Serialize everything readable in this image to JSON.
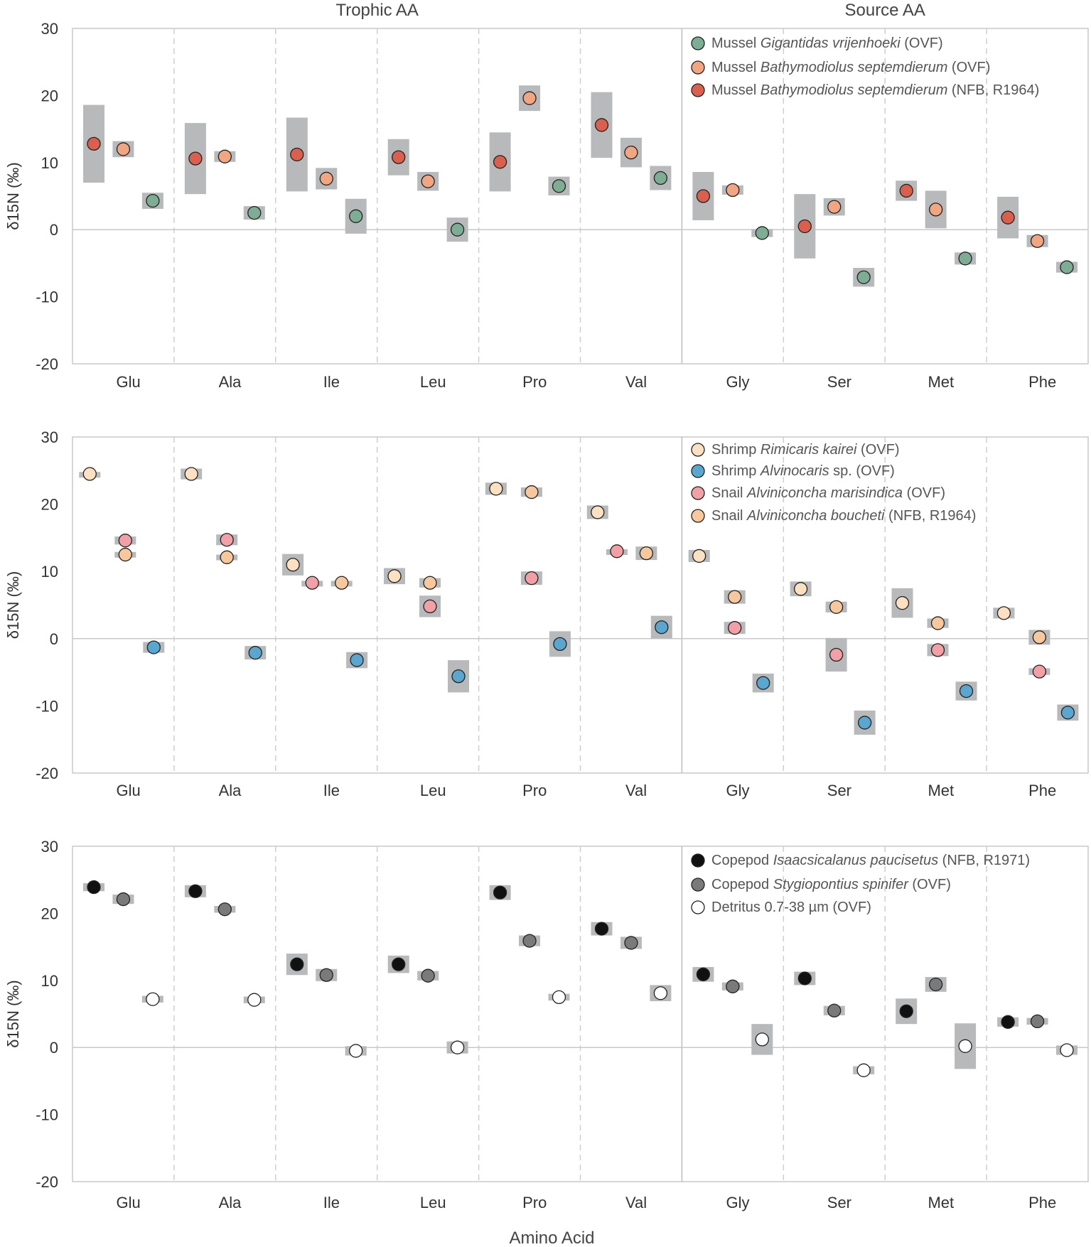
{
  "chart_data": {
    "type": "scatter",
    "group_labels": [
      "Trophic AA",
      "Source AA"
    ],
    "xlabel": "Amino Acid",
    "ylabel": "δ15N (‰)",
    "ylim": [
      -20,
      30
    ],
    "yticks": [
      30,
      20,
      10,
      0,
      -10,
      -20
    ],
    "categories": [
      "Glu",
      "Ala",
      "Ile",
      "Leu",
      "Pro",
      "Val",
      "Gly",
      "Ser",
      "Met",
      "Phe"
    ],
    "trophic_count": 6,
    "error_box_color": "#b8b9bb",
    "panels": [
      {
        "series": [
          {
            "name": "Mussel Bathymodiolus septemdierum (NFB, R1964)",
            "prefix": "Mussel ",
            "italic": "Bathymodiolus septemdierum",
            "suffix": " (NFB, R1964)",
            "color": "#d9604f",
            "slot": 0.21,
            "values": [
              12.8,
              10.6,
              11.2,
              10.8,
              10.1,
              15.6,
              5.0,
              0.5,
              5.8,
              1.8
            ],
            "sd": [
              5.8,
              5.3,
              5.5,
              2.7,
              4.4,
              4.9,
              3.6,
              4.8,
              1.5,
              3.1
            ]
          },
          {
            "name": "Mussel Bathymodiolus septemdierum (OVF)",
            "prefix": "Mussel ",
            "italic": "Bathymodiolus septemdierum",
            "suffix": " (OVF)",
            "color": "#f0a683",
            "slot": 0.5,
            "values": [
              12.0,
              10.9,
              7.6,
              7.2,
              19.6,
              11.5,
              5.9,
              3.4,
              3.0,
              -1.7
            ],
            "sd": [
              1.2,
              0.8,
              1.6,
              1.4,
              1.9,
              2.2,
              0.7,
              1.3,
              2.8,
              0.9
            ]
          },
          {
            "name": "Mussel Gigantidas vrijenhoeki (OVF)",
            "prefix": "Mussel ",
            "italic": "Gigantidas vrijenhoeki",
            "suffix": " (OVF)",
            "color": "#7fac94",
            "slot": 0.79,
            "values": [
              4.3,
              2.5,
              2.0,
              0.0,
              6.5,
              7.7,
              -0.5,
              -7.1,
              -4.3,
              -5.6
            ],
            "sd": [
              1.2,
              1.0,
              2.6,
              1.8,
              1.4,
              1.8,
              0.6,
              1.4,
              0.9,
              0.8
            ]
          }
        ],
        "legend_order": [
          2,
          1,
          0
        ]
      },
      {
        "series": [
          {
            "name": "Shrimp Rimicaris kairei (OVF)",
            "prefix": "Shrimp ",
            "italic": "Rimicaris kairei",
            "suffix": " (OVF)",
            "color": "#fbe0c2",
            "slot": 0.17,
            "values": [
              24.5,
              24.5,
              11.0,
              9.3,
              22.3,
              18.8,
              12.3,
              7.4,
              5.3,
              3.8
            ],
            "sd": [
              0.3,
              0.8,
              1.6,
              1.2,
              0.9,
              1.0,
              0.9,
              1.1,
              2.2,
              0.8
            ]
          },
          {
            "name": "Snail Alviniconcha marisindica (OVF)",
            "prefix": "Snail ",
            "italic": "Alviniconcha marisindica",
            "suffix": " (OVF)",
            "color": "#f0a0a6",
            "slot": 0.52,
            "dodge": -0.16,
            "values": [
              14.6,
              14.7,
              8.3,
              4.8,
              9.0,
              13.0,
              1.6,
              -2.4,
              -1.7,
              -4.9
            ],
            "sd": [
              0.6,
              0.8,
              0.3,
              1.6,
              1.0,
              0.3,
              0.9,
              2.5,
              0.9,
              0.5
            ]
          },
          {
            "name": "Snail Alviniconcha boucheti (NFB, R1964)",
            "prefix": "Snail ",
            "italic": "Alviniconcha boucheti",
            "suffix": " (NFB, R1964)",
            "color": "#f7c79e",
            "slot": 0.52,
            "dodge": 0.13,
            "values": [
              12.5,
              12.1,
              8.3,
              8.3,
              21.8,
              12.7,
              6.2,
              4.7,
              2.3,
              0.2
            ],
            "sd": [
              0.4,
              0.4,
              0.3,
              0.7,
              0.7,
              1.0,
              1.0,
              0.8,
              0.7,
              1.1
            ]
          },
          {
            "name": "Shrimp Alvinocaris sp. (OVF)",
            "prefix": "Shrimp ",
            "italic": "Alvinocaris",
            "suffix": " sp. (OVF)",
            "color": "#5ba6cf",
            "slot": 0.8,
            "values": [
              -1.3,
              -2.1,
              -3.2,
              -5.6,
              -0.8,
              1.7,
              -6.6,
              -12.5,
              -7.8,
              -11.0
            ],
            "sd": [
              0.8,
              1.0,
              1.2,
              2.4,
              1.9,
              1.7,
              1.4,
              1.8,
              1.4,
              1.2
            ]
          }
        ],
        "legend_order": [
          0,
          3,
          1,
          2
        ]
      },
      {
        "series": [
          {
            "name": "Copepod Isaacsicalanus paucisetus (NFB, R1971)",
            "prefix": "Copepod ",
            "italic": "Isaacsicalanus paucisetus",
            "suffix": " (NFB, R1971)",
            "color": "#111111",
            "slot": 0.21,
            "values": [
              23.9,
              23.3,
              12.4,
              12.4,
              23.1,
              17.7,
              10.9,
              10.3,
              5.4,
              3.8
            ],
            "sd": [
              0.6,
              0.9,
              1.6,
              1.3,
              1.1,
              1.0,
              1.1,
              1.0,
              1.9,
              0.7
            ]
          },
          {
            "name": "Copepod Stygiopontius spinifer (OVF)",
            "prefix": "Copepod ",
            "italic": "Stygiopontius spinifer",
            "suffix": " (OVF)",
            "color": "#7a7a7a",
            "slot": 0.5,
            "values": [
              22.1,
              20.6,
              10.8,
              10.7,
              15.9,
              15.6,
              9.1,
              5.5,
              9.4,
              3.9
            ],
            "sd": [
              0.7,
              0.5,
              0.9,
              0.7,
              0.8,
              0.9,
              0.6,
              0.7,
              1.1,
              0.5
            ]
          },
          {
            "name": "Detritus 0.7-38 µm (OVF)",
            "prefix": "Detritus 0.7-38 µm (OVF)",
            "italic": "",
            "suffix": "",
            "color": "#ffffff",
            "slot": 0.79,
            "values": [
              7.2,
              7.1,
              -0.5,
              0.0,
              7.5,
              8.1,
              1.2,
              -3.4,
              0.2,
              -0.4
            ],
            "sd": [
              0.5,
              0.5,
              0.7,
              0.9,
              0.5,
              1.2,
              2.3,
              0.6,
              3.4,
              0.7
            ]
          }
        ],
        "legend_order": [
          0,
          1,
          2
        ]
      }
    ]
  }
}
